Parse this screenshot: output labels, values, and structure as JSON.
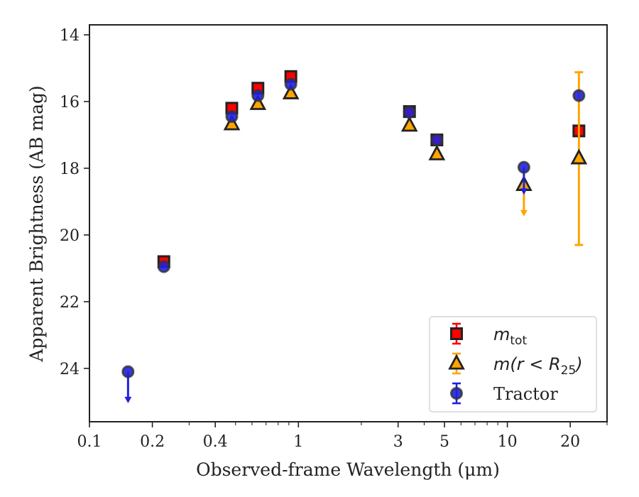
{
  "chart_data": {
    "type": "scatter",
    "xlabel": "Observed-frame Wavelength (μm)",
    "ylabel": "Apparent Brightness (AB mag)",
    "xscale": "log",
    "xlim": [
      0.1,
      30
    ],
    "ylim": [
      25.6,
      13.7
    ],
    "y_inverted": true,
    "x_ticks": [
      0.1,
      0.2,
      0.4,
      1,
      3,
      5,
      10,
      20
    ],
    "x_tick_labels": [
      "0.1",
      "0.2",
      "0.4",
      "1",
      "3",
      "5",
      "10",
      "20"
    ],
    "y_ticks": [
      14,
      16,
      18,
      20,
      22,
      24
    ],
    "y_tick_labels": [
      "14",
      "16",
      "18",
      "20",
      "22",
      "24"
    ],
    "grid": false,
    "legend_position": "lower-right",
    "series": [
      {
        "name": "m_tot",
        "label_main": "m",
        "label_sub": "tot",
        "marker": "square",
        "color": "#ff0000",
        "edge": "#222222",
        "error_color": "#ff0000",
        "points": [
          {
            "x": 0.227,
            "y": 20.8
          },
          {
            "x": 0.48,
            "y": 16.2
          },
          {
            "x": 0.64,
            "y": 15.6
          },
          {
            "x": 0.92,
            "y": 15.25
          },
          {
            "x": 3.4,
            "y": 16.3
          },
          {
            "x": 4.6,
            "y": 17.15
          },
          {
            "x": 22.0,
            "y": 16.88
          }
        ]
      },
      {
        "name": "m(r<R25)",
        "label_main": "m(r < R",
        "label_sub": "25",
        "label_end": ")",
        "marker": "triangle",
        "color": "#ffa500",
        "edge": "#222222",
        "error_color": "#ffa500",
        "points": [
          {
            "x": 0.48,
            "y": 16.68
          },
          {
            "x": 0.64,
            "y": 16.07
          },
          {
            "x": 0.92,
            "y": 15.75
          },
          {
            "x": 3.4,
            "y": 16.72
          },
          {
            "x": 4.6,
            "y": 17.58
          },
          {
            "x": 12.0,
            "y": 18.5,
            "upper_limit_to": 19.4
          },
          {
            "x": 22.0,
            "y": 17.7,
            "err_low": 15.12,
            "err_high": 20.3
          }
        ]
      },
      {
        "name": "Tractor",
        "marker": "circle",
        "color": "#2020dd",
        "edge": "#333333",
        "error_color": "#2020dd",
        "points": [
          {
            "x": 0.153,
            "y": 24.1,
            "upper_limit_to": 25.0
          },
          {
            "x": 0.227,
            "y": 20.95
          },
          {
            "x": 0.48,
            "y": 16.45
          },
          {
            "x": 0.64,
            "y": 15.82
          },
          {
            "x": 0.92,
            "y": 15.48
          },
          {
            "x": 3.4,
            "y": 16.32
          },
          {
            "x": 4.6,
            "y": 17.15
          },
          {
            "x": 12.0,
            "y": 17.97,
            "upper_limit_to": 18.75
          },
          {
            "x": 22.0,
            "y": 15.82
          }
        ]
      }
    ]
  }
}
